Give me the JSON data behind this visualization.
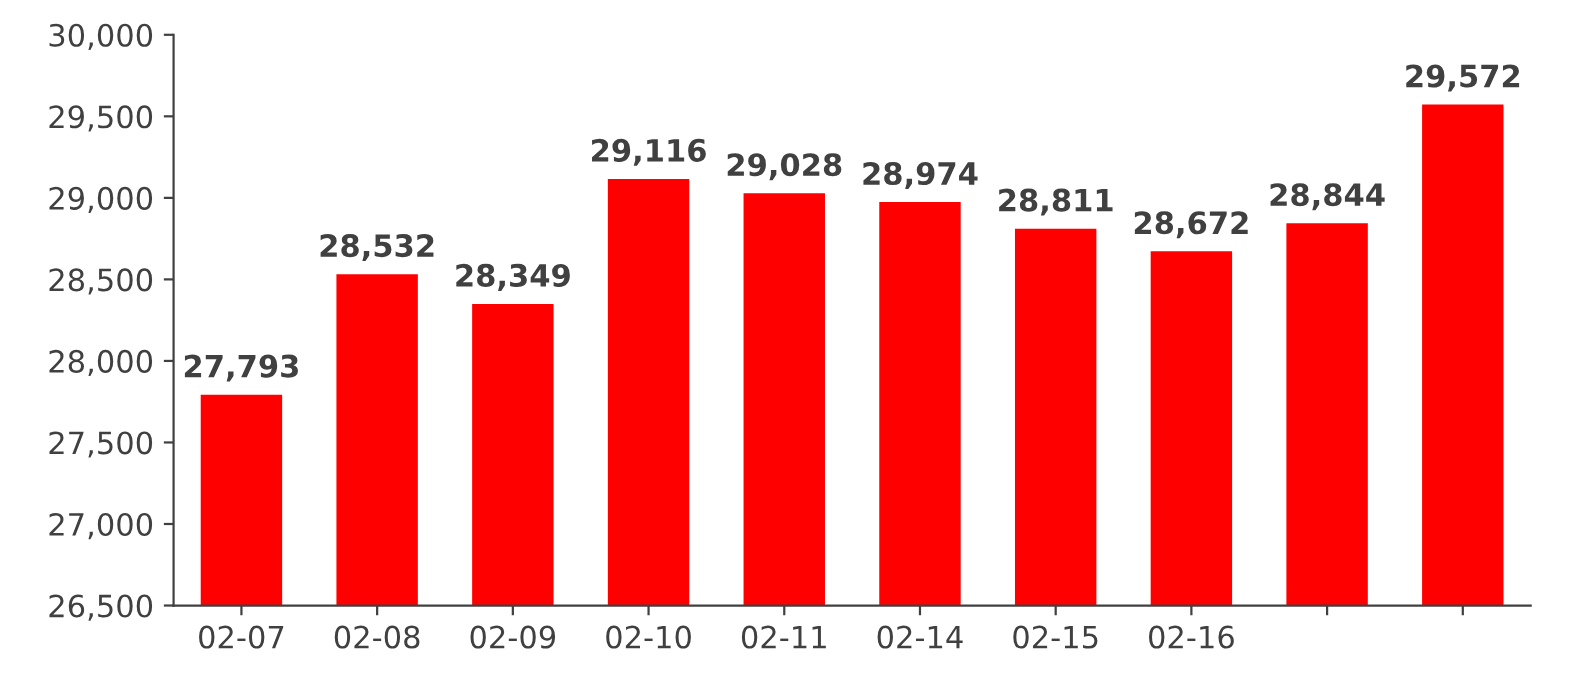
{
  "chart_data": {
    "type": "bar",
    "categories": [
      "02-07",
      "02-08",
      "02-09",
      "02-10",
      "02-11",
      "02-14",
      "02-15",
      "02-16",
      null,
      null
    ],
    "values": [
      27793,
      28532,
      28349,
      29116,
      29028,
      28974,
      28811,
      28672,
      28844,
      29572
    ],
    "color": "#ff0000",
    "ylim": [
      26500,
      30000
    ],
    "yticks": [
      {
        "value": 26500,
        "label": "26,500"
      },
      {
        "value": 27000,
        "label": "27,000"
      },
      {
        "value": 27500,
        "label": "27,500"
      },
      {
        "value": 28000,
        "label": "28,000"
      },
      {
        "value": 28500,
        "label": "28,500"
      },
      {
        "value": 29000,
        "label": "29,000"
      },
      {
        "value": 29500,
        "label": "29,500"
      },
      {
        "value": 30000,
        "label": "30,000"
      }
    ],
    "value_labels": [
      "27,793",
      "28,532",
      "28,349",
      "29,116",
      "29,028",
      "28,974",
      "28,811",
      "28,672",
      "28,844",
      "29,572"
    ],
    "grid": false
  }
}
